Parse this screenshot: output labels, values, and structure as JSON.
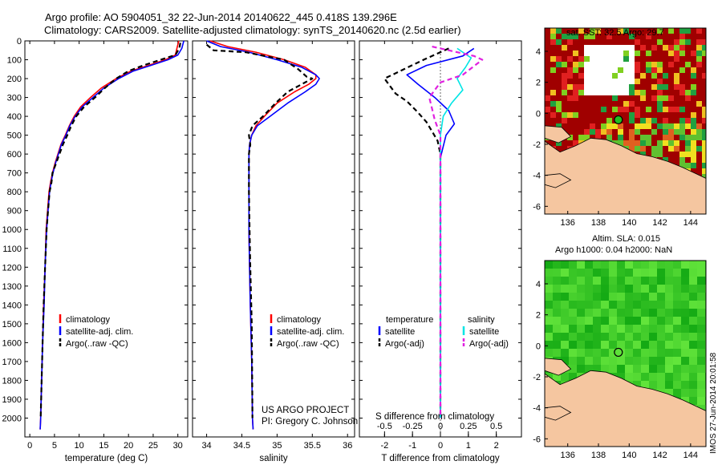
{
  "header": {
    "title_line1": "Argo profile: AO 5904051_32 22-Jun-2014 20140622_445 0.418S 139.296E",
    "title_line2": "Climatology: CARS2009. Satellite-adjusted climatology: synTS_20140620.nc (2.5d earlier)"
  },
  "colors": {
    "climatology": "#ff0000",
    "satellite": "#0000ff",
    "argo": "#000000",
    "satellite_salinity": "#00e5e5",
    "argo_salinity": "#e020e0",
    "land": "#f5c6a0"
  },
  "credits": {
    "line1": "US ARGO PROJECT",
    "line2": "PI: Gregory C. Johnson"
  },
  "side_caption": "IMOS 27-Jun-2014 20:01:58",
  "chart_data": [
    {
      "type": "line",
      "id": "temperature",
      "xlabel": "temperature (deg C)",
      "ylabel": "",
      "xlim": [
        -1,
        32
      ],
      "ylim": [
        2100,
        0
      ],
      "xticks": [
        0,
        5,
        10,
        15,
        20,
        25,
        30
      ],
      "yticks": [
        0,
        100,
        200,
        300,
        400,
        500,
        600,
        700,
        800,
        900,
        1000,
        1100,
        1200,
        1300,
        1400,
        1500,
        1600,
        1700,
        1800,
        1900,
        2000
      ],
      "legend": [
        "climatology",
        "satellite-adj. clim.",
        "Argo(..raw -QC)"
      ],
      "legend_position": "lower-center",
      "series": [
        {
          "name": "climatology",
          "color": "#ff0000",
          "dash": false,
          "x": [
            30.2,
            29.8,
            29.5,
            27.5,
            24.0,
            20.5,
            17.5,
            14.5,
            12.3,
            10.3,
            9.0,
            8.0,
            7.2,
            6.3,
            5.7,
            5.1,
            4.6,
            4.2,
            3.9,
            3.6,
            3.3,
            3.1,
            2.8,
            2.6,
            2.4,
            2.2,
            2.1
          ],
          "y": [
            0,
            40,
            75,
            100,
            130,
            160,
            200,
            250,
            300,
            350,
            400,
            450,
            500,
            550,
            600,
            650,
            700,
            750,
            800,
            900,
            1000,
            1200,
            1400,
            1600,
            1800,
            2000,
            2060
          ]
        },
        {
          "name": "satellite-adj. clim.",
          "color": "#0000ff",
          "dash": false,
          "x": [
            31.2,
            30.8,
            30.0,
            28.0,
            24.5,
            21.0,
            18.0,
            15.0,
            12.8,
            10.6,
            9.2,
            8.1,
            7.3,
            6.4,
            5.8,
            5.2,
            4.7,
            4.3,
            4.0,
            3.7,
            3.4,
            3.1,
            2.9,
            2.6,
            2.4,
            2.2,
            2.1
          ],
          "y": [
            0,
            40,
            75,
            100,
            130,
            160,
            200,
            250,
            300,
            350,
            400,
            450,
            500,
            550,
            600,
            650,
            700,
            750,
            800,
            900,
            1000,
            1200,
            1400,
            1600,
            1800,
            2000,
            2060
          ]
        },
        {
          "name": "Argo(..raw -QC)",
          "color": "#000000",
          "dash": true,
          "x": [
            30.5,
            30.3,
            29.5,
            26.5,
            23.0,
            20.0,
            17.5,
            15.2,
            13.2,
            11.0,
            9.4,
            8.4,
            7.6,
            6.7,
            6.0,
            5.3,
            4.6,
            4.4,
            4.0,
            3.7,
            3.4,
            3.1,
            2.8,
            2.6,
            2.4,
            2.2
          ],
          "y": [
            10,
            40,
            75,
            100,
            130,
            160,
            200,
            250,
            300,
            350,
            400,
            450,
            500,
            550,
            600,
            650,
            700,
            750,
            800,
            900,
            1000,
            1200,
            1400,
            1600,
            1800,
            2000
          ]
        }
      ]
    },
    {
      "type": "line",
      "id": "salinity",
      "xlabel": "salinity",
      "ylabel": "",
      "xlim": [
        33.8,
        36.1
      ],
      "ylim": [
        2100,
        0
      ],
      "xticks": [
        34,
        34.5,
        35,
        35.5,
        36
      ],
      "legend": [
        "climatology",
        "satellite-adj. clim.",
        "Argo(..raw -QC)"
      ],
      "legend_position": "lower-right",
      "series": [
        {
          "name": "climatology",
          "color": "#ff0000",
          "dash": false,
          "x": [
            34.05,
            34.3,
            34.7,
            35.1,
            35.4,
            35.55,
            35.55,
            35.45,
            35.25,
            35.0,
            34.82,
            34.7,
            34.64,
            34.61,
            34.6,
            34.6,
            34.6,
            34.6,
            34.61,
            34.62,
            34.64,
            34.65,
            34.66
          ],
          "y": [
            0,
            30,
            60,
            100,
            140,
            180,
            200,
            230,
            270,
            330,
            400,
            450,
            500,
            550,
            600,
            700,
            800,
            1000,
            1200,
            1400,
            1700,
            2000,
            2060
          ]
        },
        {
          "name": "satellite-adj. clim.",
          "color": "#0000ff",
          "dash": false,
          "x": [
            34.0,
            34.2,
            34.6,
            35.0,
            35.35,
            35.55,
            35.6,
            35.55,
            35.4,
            35.15,
            34.9,
            34.72,
            34.64,
            34.61,
            34.6,
            34.6,
            34.6,
            34.6,
            34.61,
            34.62,
            34.64,
            34.65,
            34.66
          ],
          "y": [
            0,
            30,
            60,
            100,
            140,
            180,
            200,
            230,
            270,
            330,
            400,
            450,
            500,
            550,
            600,
            700,
            800,
            1000,
            1200,
            1400,
            1700,
            2000,
            2060
          ]
        },
        {
          "name": "Argo(..raw -QC)",
          "color": "#000000",
          "dash": true,
          "x": [
            34.0,
            34.1,
            34.55,
            35.1,
            35.3,
            35.42,
            35.5,
            35.35,
            35.15,
            34.98,
            34.8,
            34.65,
            34.6,
            34.62,
            34.6,
            34.6,
            34.6,
            34.61,
            34.62,
            34.64,
            34.65
          ],
          "y": [
            20,
            50,
            60,
            100,
            150,
            190,
            200,
            230,
            270,
            330,
            400,
            450,
            500,
            550,
            600,
            700,
            800,
            1000,
            1200,
            1500,
            2000
          ]
        }
      ]
    },
    {
      "type": "line",
      "id": "difference",
      "xlabel": "T difference from climatology",
      "xlabel2": "S difference from climatology",
      "xlim": [
        -2.9,
        2.9
      ],
      "ylim": [
        2100,
        0
      ],
      "xticks": [
        -2,
        -1,
        0,
        1,
        2
      ],
      "xticks2": [
        -0.5,
        -0.25,
        0,
        0.25,
        0.5
      ],
      "legend_titles": [
        "temperature",
        "salinity"
      ],
      "legend": [
        "satellite",
        "Argo(-adj)",
        "satellite",
        "Argo(-adj)"
      ],
      "legend_position": "lower-center",
      "series": [
        {
          "name": "temperature satellite",
          "color": "#0000ff",
          "dash": false,
          "x": [
            1.2,
            0.8,
            -0.5,
            -1.2,
            -0.8,
            -0.2,
            0.3,
            0.5,
            0.2,
            0.1,
            0.0,
            0.0,
            0.0,
            0.0,
            0.0,
            0.0,
            0.0,
            0.0,
            0.0,
            0.0
          ],
          "y": [
            40,
            80,
            130,
            180,
            230,
            300,
            370,
            440,
            500,
            560,
            620,
            700,
            800,
            900,
            1000,
            1200,
            1400,
            1600,
            1800,
            2000
          ]
        },
        {
          "name": "temperature Argo(-adj)",
          "color": "#000000",
          "dash": true,
          "x": [
            0.3,
            -0.6,
            -2.0,
            -1.8,
            -1.6,
            -1.2,
            -1.0,
            -0.8,
            -0.5,
            -0.3,
            -0.1,
            0.0,
            0.0,
            0.0,
            0.0,
            0.0,
            0.0,
            0.0,
            0.0
          ],
          "y": [
            40,
            100,
            200,
            240,
            280,
            320,
            350,
            380,
            430,
            480,
            530,
            600,
            700,
            800,
            900,
            1000,
            1200,
            1500,
            2000
          ]
        },
        {
          "name": "salinity satellite",
          "color": "#00e5e5",
          "dash": false,
          "x": [
            0.6,
            1.1,
            0.9,
            0.6,
            0.8,
            0.4,
            0.1,
            0.0,
            0.0,
            0.0,
            0.0,
            0.0,
            0.0,
            0.0,
            0.0
          ],
          "y": [
            40,
            90,
            140,
            200,
            260,
            330,
            400,
            500,
            600,
            700,
            800,
            1000,
            1300,
            1600,
            2000
          ]
        },
        {
          "name": "salinity Argo(-adj)",
          "color": "#e020e0",
          "dash": true,
          "x": [
            -0.3,
            1.2,
            1.5,
            0.8,
            0.0,
            -0.4,
            -0.3,
            -0.2,
            0.0,
            0.0,
            0.0,
            0.0
          ],
          "y": [
            30,
            80,
            100,
            180,
            220,
            300,
            360,
            420,
            500,
            700,
            1000,
            2000
          ]
        }
      ]
    },
    {
      "type": "heatmap",
      "id": "sst_map",
      "title": "sat. SST: 32.5 Argo: 29.7",
      "xticks": [
        136,
        138,
        140,
        142,
        144
      ],
      "yticks": [
        4,
        2,
        0,
        -2,
        -4,
        -6
      ],
      "xlim": [
        134.5,
        145
      ],
      "ylim": [
        -6.5,
        5.5
      ],
      "marker": {
        "lon": 139.296,
        "lat": -0.418
      }
    },
    {
      "type": "heatmap",
      "id": "sla_map",
      "title_line1": "Altim. SLA: 0.015",
      "title_line2": "Argo h1000: 0.04 h2000: NaN",
      "xticks": [
        136,
        138,
        140,
        142,
        144
      ],
      "yticks": [
        4,
        2,
        0,
        -2,
        -4,
        -6
      ],
      "xlim": [
        134.5,
        145
      ],
      "ylim": [
        -6.5,
        5.5
      ],
      "marker": {
        "lon": 139.296,
        "lat": -0.418
      }
    }
  ]
}
